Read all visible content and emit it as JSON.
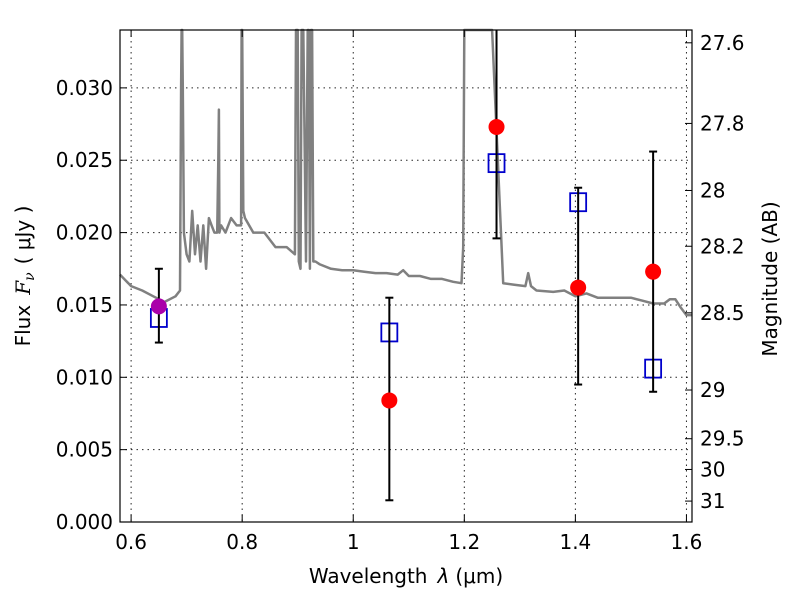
{
  "chart_data": {
    "type": "scatter",
    "xlabel": "Wavelength",
    "xlabel_symbol": "λ",
    "xlabel_unit": "(μm)",
    "ylabel": "Flux",
    "ylabel_symbol": "F",
    "ylabel_subscript": "ν",
    "ylabel_unit": "( μJy )",
    "y2label": "Magnitude (AB)",
    "xlim": [
      0.58,
      1.61
    ],
    "ylim": [
      0.0,
      0.034
    ],
    "grid": true,
    "x_ticks": [
      0.6,
      0.8,
      1.0,
      1.2,
      1.4,
      1.6
    ],
    "x_tick_labels": [
      "0.6",
      "0.8",
      "1",
      "1.2",
      "1.4",
      "1.6"
    ],
    "y_ticks": [
      0.0,
      0.005,
      0.01,
      0.015,
      0.02,
      0.025,
      0.03
    ],
    "y_tick_labels": [
      "0.000",
      "0.005",
      "0.010",
      "0.015",
      "0.020",
      "0.025",
      "0.030"
    ],
    "y2_ticks": [
      27.6,
      27.8,
      28.0,
      28.2,
      28.5,
      29.0,
      29.5,
      30.0,
      31.0
    ],
    "y2_tick_labels": [
      "27.6",
      "27.8",
      "28",
      "28.2",
      "28.5",
      "29",
      "29.5",
      "30",
      "31"
    ],
    "series": [
      {
        "marker": "line",
        "color": "#808080",
        "x": [
          0.58,
          0.6,
          0.62,
          0.64,
          0.66,
          0.68,
          0.688,
          0.69,
          0.691,
          0.692,
          0.693,
          0.695,
          0.7,
          0.705,
          0.71,
          0.715,
          0.72,
          0.725,
          0.73,
          0.735,
          0.74,
          0.745,
          0.75,
          0.755,
          0.757,
          0.758,
          0.759,
          0.762,
          0.77,
          0.78,
          0.79,
          0.798,
          0.799,
          0.8,
          0.802,
          0.805,
          0.82,
          0.84,
          0.86,
          0.88,
          0.895,
          0.897,
          0.898,
          0.9,
          0.902,
          0.905,
          0.907,
          0.91,
          0.915,
          0.918,
          0.92,
          0.922,
          0.924,
          0.926,
          0.928,
          0.93,
          0.932,
          0.94,
          0.96,
          0.98,
          1.0,
          1.02,
          1.04,
          1.06,
          1.08,
          1.09,
          1.1,
          1.12,
          1.14,
          1.16,
          1.18,
          1.195,
          1.198,
          1.2,
          1.205,
          1.25,
          1.27,
          1.29,
          1.31,
          1.315,
          1.32,
          1.33,
          1.36,
          1.38,
          1.4,
          1.42,
          1.44,
          1.46,
          1.48,
          1.5,
          1.52,
          1.54,
          1.56,
          1.57,
          1.58,
          1.59,
          1.6,
          1.61
        ],
        "y": [
          0.0171,
          0.0163,
          0.016,
          0.0156,
          0.0152,
          0.0156,
          0.016,
          0.03,
          0.034,
          0.034,
          0.03,
          0.02,
          0.0185,
          0.018,
          0.0215,
          0.0185,
          0.0205,
          0.018,
          0.0205,
          0.0175,
          0.021,
          0.0205,
          0.02,
          0.02,
          0.025,
          0.0285,
          0.02,
          0.0205,
          0.02,
          0.021,
          0.0205,
          0.0205,
          0.034,
          0.034,
          0.0215,
          0.021,
          0.02,
          0.02,
          0.019,
          0.019,
          0.0185,
          0.034,
          0.034,
          0.034,
          0.018,
          0.0175,
          0.034,
          0.034,
          0.018,
          0.034,
          0.034,
          0.0175,
          0.034,
          0.034,
          0.018,
          0.018,
          0.018,
          0.0178,
          0.0175,
          0.0174,
          0.0174,
          0.0173,
          0.0172,
          0.0172,
          0.0171,
          0.0174,
          0.017,
          0.017,
          0.0168,
          0.0168,
          0.0166,
          0.0165,
          0.019,
          0.034,
          0.034,
          0.034,
          0.0165,
          0.0164,
          0.0163,
          0.0172,
          0.0163,
          0.016,
          0.0159,
          0.016,
          0.0156,
          0.0158,
          0.0155,
          0.0155,
          0.0155,
          0.0155,
          0.0153,
          0.0151,
          0.0151,
          0.0154,
          0.0154,
          0.0148,
          0.0143,
          0.0143
        ]
      },
      {
        "marker": "square",
        "color": "#0000cc",
        "x": [
          0.65,
          1.065,
          1.258,
          1.405,
          1.54
        ],
        "y": [
          0.0141,
          0.0131,
          0.0248,
          0.0221,
          0.0106
        ]
      },
      {
        "marker": "circle",
        "color": "#ff0000",
        "x": [
          1.065,
          1.258,
          1.405,
          1.54
        ],
        "y": [
          0.0084,
          0.0273,
          0.0162,
          0.0173
        ],
        "yerr_low": [
          0.0015,
          0.0196,
          0.0095,
          0.009
        ],
        "yerr_high": [
          0.0155,
          0.034,
          0.0231,
          0.0256
        ]
      },
      {
        "marker": "circle",
        "color": "#aa00aa",
        "x": [
          0.65
        ],
        "y": [
          0.0149
        ],
        "yerr_low": [
          0.0124
        ],
        "yerr_high": [
          0.0175
        ]
      }
    ]
  }
}
